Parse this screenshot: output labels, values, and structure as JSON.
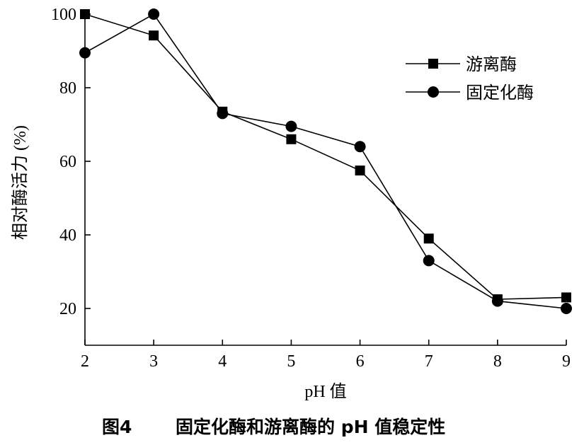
{
  "chart_data": {
    "type": "line",
    "x": [
      2,
      3,
      4,
      5,
      6,
      7,
      8,
      9
    ],
    "xlabel": "pH 值",
    "ylabel": "相对酶活力 (%)",
    "xlim": [
      2,
      9
    ],
    "ylim": [
      10,
      100
    ],
    "xticks": [
      "2",
      "3",
      "4",
      "5",
      "6",
      "7",
      "8",
      "9"
    ],
    "yticks": [
      "20",
      "40",
      "60",
      "80",
      "100"
    ],
    "grid": false,
    "legend_position": "top-right",
    "series": [
      {
        "name": "游离酶",
        "marker": "square",
        "values": [
          100,
          94.2,
          73.5,
          66,
          57.5,
          39,
          22.5,
          23
        ]
      },
      {
        "name": "固定化酶",
        "marker": "circle",
        "values": [
          89.5,
          100,
          73,
          69.5,
          64,
          33,
          22,
          20
        ]
      }
    ],
    "caption_label": "图4",
    "caption_text": "固定化酶和游离酶的 pH 值稳定性"
  }
}
